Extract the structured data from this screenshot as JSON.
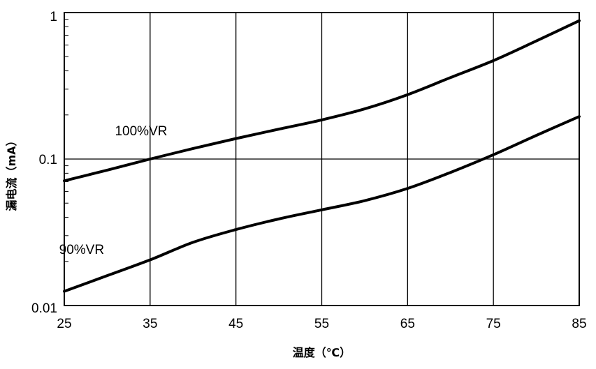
{
  "chart_data": {
    "type": "line",
    "xlabel": "温度（℃）",
    "ylabel": "漏电流（mA）",
    "xlim": [
      25,
      85
    ],
    "ylim": [
      0.01,
      1
    ],
    "yscale": "log",
    "grid": true,
    "x_ticks": [
      "25",
      "35",
      "45",
      "55",
      "65",
      "75",
      "85"
    ],
    "y_ticks": [
      "0.01",
      "0.1",
      "1"
    ],
    "series": [
      {
        "name": "100%VR",
        "x": [
          25,
          30,
          35,
          40,
          45,
          50,
          55,
          60,
          65,
          70,
          75,
          80,
          85
        ],
        "y": [
          0.071,
          0.084,
          0.1,
          0.118,
          0.138,
          0.16,
          0.185,
          0.22,
          0.275,
          0.36,
          0.47,
          0.64,
          0.88
        ]
      },
      {
        "name": "90%VR",
        "x": [
          25,
          30,
          35,
          40,
          45,
          50,
          55,
          60,
          65,
          70,
          75,
          80,
          85
        ],
        "y": [
          0.0125,
          0.016,
          0.0205,
          0.027,
          0.033,
          0.039,
          0.045,
          0.052,
          0.063,
          0.081,
          0.107,
          0.145,
          0.195
        ]
      }
    ]
  }
}
